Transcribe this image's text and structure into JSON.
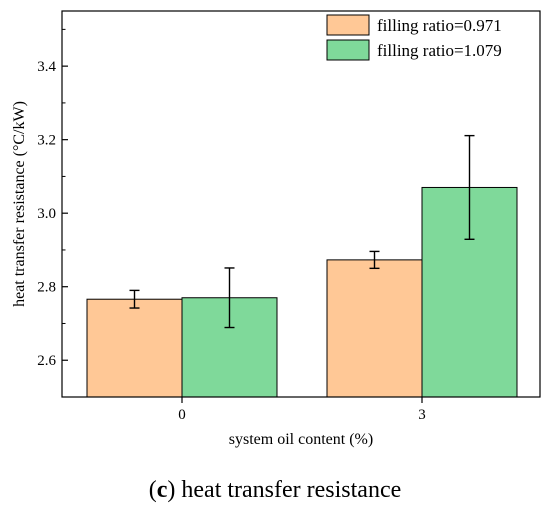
{
  "chart_data": {
    "type": "bar",
    "categories": [
      "0",
      "3"
    ],
    "series": [
      {
        "name": "filling ratio=0.971",
        "color": "#ffc896",
        "values": [
          2.766,
          2.873
        ],
        "error": [
          0.024,
          0.023
        ]
      },
      {
        "name": "filling ratio=1.079",
        "color": "#7fd99a",
        "values": [
          2.77,
          3.07
        ],
        "error": [
          0.081,
          0.141
        ]
      }
    ],
    "xlabel": "system oil content (%)",
    "ylabel": "heat transfer resistance (°C/kW)",
    "ylim": [
      2.5,
      3.55
    ],
    "yticks": [
      2.6,
      2.8,
      3.0,
      3.2,
      3.4
    ],
    "ytick_labels": [
      "2.6",
      "2.8",
      "3.0",
      "3.2",
      "3.4"
    ],
    "legend_position": "top-right",
    "grid": false
  },
  "caption": {
    "prefix": "(",
    "letter": "c",
    "suffix": ") heat transfer resistance"
  }
}
